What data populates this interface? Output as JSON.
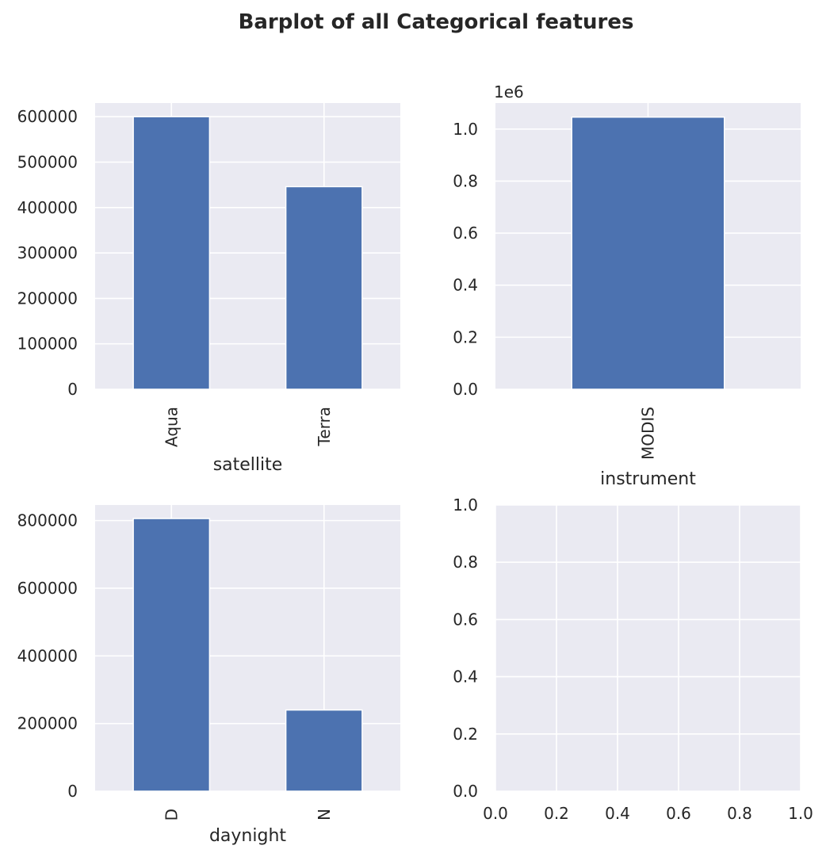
{
  "suptitle": "Barplot of all Categorical features",
  "style": {
    "axes_bg": "#eaeaf2",
    "grid": "#ffffff",
    "bar": "#4c72b0",
    "text": "#262626"
  },
  "chart_data": [
    {
      "type": "bar",
      "xlabel": "satellite",
      "ylabel": "",
      "categories": [
        "Aqua",
        "Terra"
      ],
      "values": [
        600000,
        446000
      ],
      "ylim": [
        0,
        630000
      ],
      "yticks": [
        0,
        100000,
        200000,
        300000,
        400000,
        500000,
        600000
      ],
      "ytick_labels": [
        "0",
        "100000",
        "200000",
        "300000",
        "400000",
        "500000",
        "600000"
      ],
      "xtick_rotation": 90,
      "grid": true
    },
    {
      "type": "bar",
      "xlabel": "instrument",
      "ylabel": "",
      "categories": [
        "MODIS"
      ],
      "values": [
        1046000
      ],
      "ylim": [
        0,
        1100000
      ],
      "yticks": [
        0,
        200000,
        400000,
        600000,
        800000,
        1000000
      ],
      "ytick_labels": [
        "0.0",
        "0.2",
        "0.4",
        "0.6",
        "0.8",
        "1.0"
      ],
      "offset_text": "1e6",
      "xtick_rotation": 90,
      "grid": true
    },
    {
      "type": "bar",
      "xlabel": "daynight",
      "ylabel": "",
      "categories": [
        "D",
        "N"
      ],
      "values": [
        806000,
        240000
      ],
      "ylim": [
        0,
        846000
      ],
      "yticks": [
        0,
        200000,
        400000,
        600000,
        800000
      ],
      "ytick_labels": [
        "0",
        "200000",
        "400000",
        "600000",
        "800000"
      ],
      "xtick_rotation": 90,
      "grid": true
    },
    {
      "type": "empty",
      "xlabel": "",
      "ylabel": "",
      "xlim": [
        0,
        1
      ],
      "ylim": [
        0,
        1
      ],
      "xticks": [
        0,
        0.2,
        0.4,
        0.6,
        0.8,
        1.0
      ],
      "xtick_labels": [
        "0.0",
        "0.2",
        "0.4",
        "0.6",
        "0.8",
        "1.0"
      ],
      "yticks": [
        0,
        0.2,
        0.4,
        0.6,
        0.8,
        1.0
      ],
      "ytick_labels": [
        "0.0",
        "0.2",
        "0.4",
        "0.6",
        "0.8",
        "1.0"
      ],
      "grid": true
    }
  ]
}
